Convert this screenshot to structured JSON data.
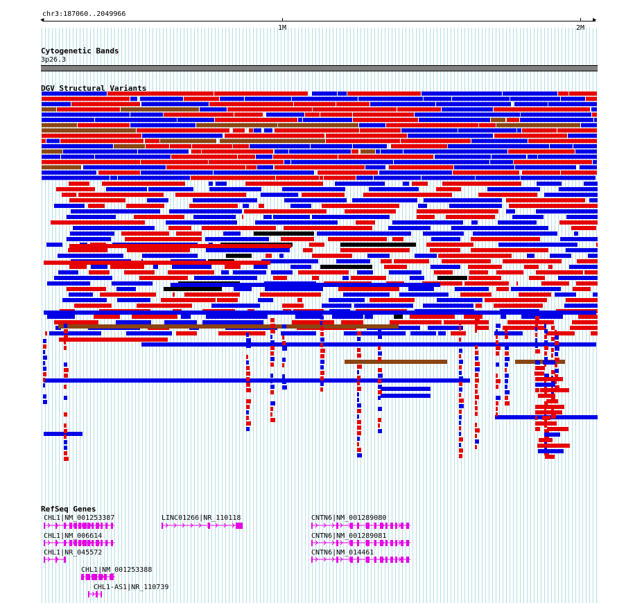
{
  "ruler": {
    "location": "chr3:187060..2049966",
    "ticks": [
      "1M",
      "2M"
    ]
  },
  "cyto": {
    "title": "Cytogenetic Bands",
    "band_name": "3p26.3",
    "band_color": "#808080"
  },
  "dgv": {
    "title": "DGV Structural Variants",
    "colors": {
      "loss": "#0000e6",
      "gain": "#e60000",
      "both": "#8b4513",
      "black": "#000000"
    }
  },
  "refseq": {
    "title": "RefSeq Genes",
    "color": "#e600e6",
    "genes": [
      {
        "label": "CHL1|NM_001253387"
      },
      {
        "label": "LINC01266|NR_110118"
      },
      {
        "label": "CNTN6|NM_001289080"
      },
      {
        "label": "CHL1|NM_006614"
      },
      {
        "label": "CNTN6|NM_001289081"
      },
      {
        "label": "CHL1|NR_045572"
      },
      {
        "label": "CNTN6|NM_014461"
      },
      {
        "label": "CHL1|NM_001253388"
      },
      {
        "label": "CHL1-AS1|NR_110739"
      }
    ]
  }
}
